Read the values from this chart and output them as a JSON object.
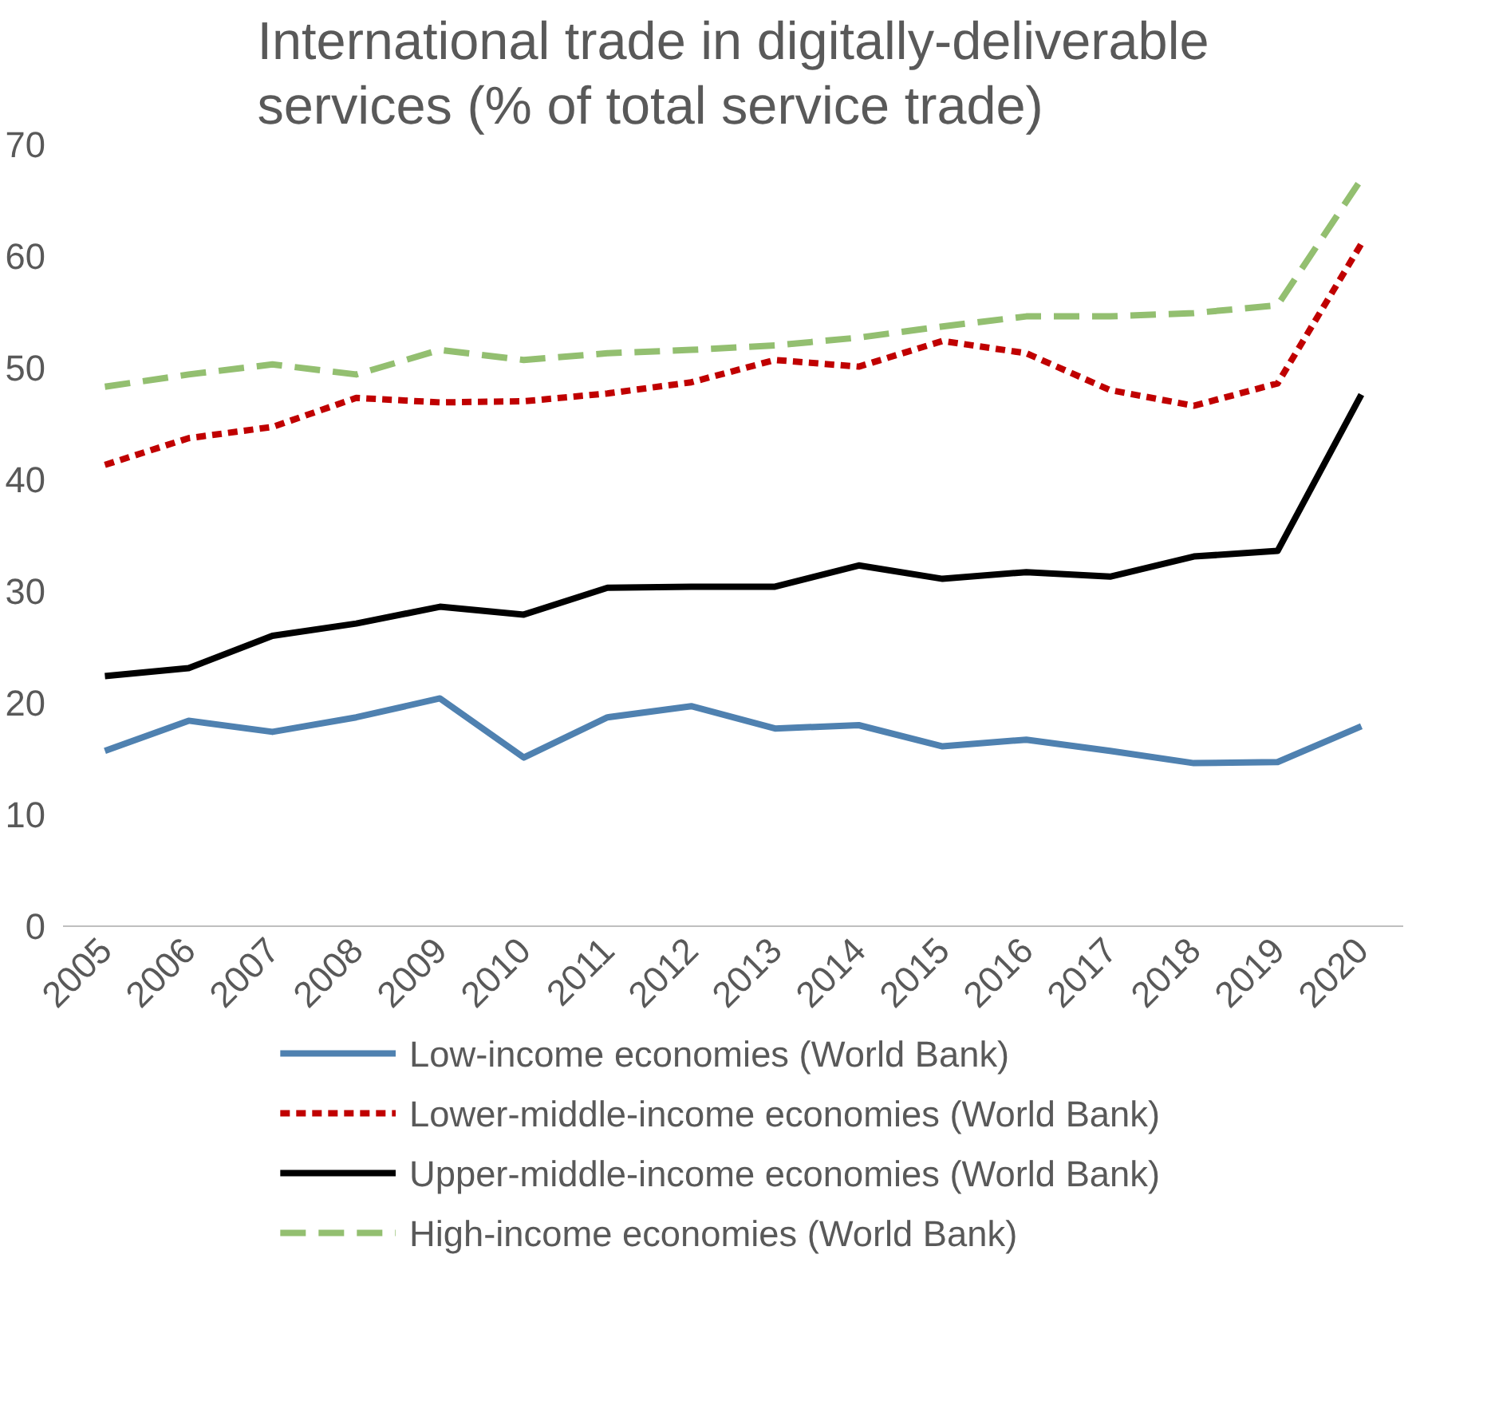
{
  "chart_data": {
    "type": "line",
    "title": "International trade in digitally-deliverable services (% of total service trade)",
    "categories": [
      "2005",
      "2006",
      "2007",
      "2008",
      "2009",
      "2010",
      "2011",
      "2012",
      "2013",
      "2014",
      "2015",
      "2016",
      "2017",
      "2018",
      "2019",
      "2020"
    ],
    "ylim": [
      0,
      70
    ],
    "yticks": [
      0,
      10,
      20,
      30,
      40,
      50,
      60,
      70
    ],
    "grid": false,
    "legend": "bottom",
    "series": [
      {
        "name": "Low-income economies (World Bank)",
        "color": "#4f81b0",
        "line_style": "solid",
        "values": [
          15.7,
          18.4,
          17.4,
          18.7,
          20.4,
          15.1,
          18.7,
          19.7,
          17.7,
          18.0,
          16.1,
          16.7,
          15.7,
          14.6,
          14.7,
          17.9
        ]
      },
      {
        "name": "Lower-middle-income economies (World Bank)",
        "color": "#c00000",
        "line_style": "dotted",
        "values": [
          41.3,
          43.7,
          44.7,
          47.3,
          46.9,
          47.0,
          47.7,
          48.7,
          50.7,
          50.1,
          52.4,
          51.3,
          48.0,
          46.6,
          48.6,
          61.1
        ]
      },
      {
        "name": "Upper-middle-income economies (World Bank)",
        "color": "#000000",
        "line_style": "solid",
        "values": [
          22.4,
          23.1,
          26.0,
          27.1,
          28.6,
          27.9,
          30.3,
          30.4,
          30.4,
          32.3,
          31.1,
          31.7,
          31.3,
          33.1,
          33.6,
          47.6
        ]
      },
      {
        "name": "High-income economies (World Bank)",
        "color": "#93bf70",
        "line_style": "dashed",
        "values": [
          48.3,
          49.4,
          50.3,
          49.4,
          51.6,
          50.7,
          51.3,
          51.6,
          52.0,
          52.7,
          53.7,
          54.6,
          54.6,
          54.9,
          55.6,
          66.9
        ]
      }
    ]
  }
}
